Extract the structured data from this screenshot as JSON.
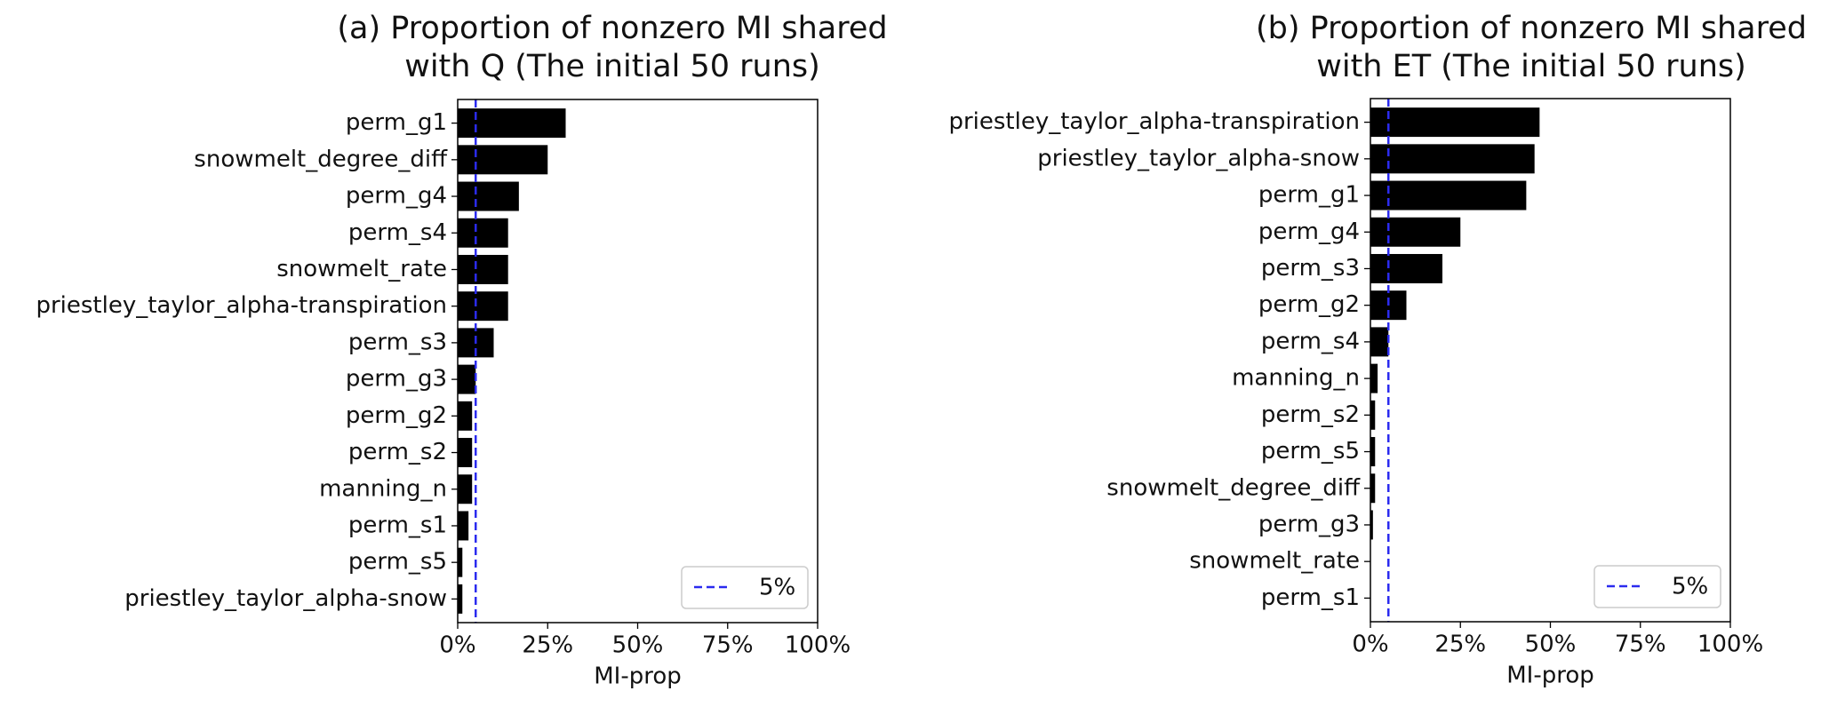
{
  "chart_data": [
    {
      "type": "barh",
      "title": [
        "(a) Proportion of nonzero MI shared",
        "with Q (The initial 50 runs)"
      ],
      "xlabel": "MI-prop",
      "categories": [
        "perm_g1",
        "snowmelt_degree_diff",
        "perm_g4",
        "perm_s4",
        "snowmelt_rate",
        "priestley_taylor_alpha-transpiration",
        "perm_s3",
        "perm_g3",
        "perm_g2",
        "perm_s2",
        "manning_n",
        "perm_s1",
        "perm_s5",
        "priestley_taylor_alpha-snow"
      ],
      "values": [
        30,
        25,
        17,
        14,
        14,
        14,
        10,
        5,
        4,
        4,
        4,
        3,
        1.3,
        1.3
      ],
      "color": "#000000",
      "xlim": [
        0,
        100
      ],
      "xticks": [
        {
          "value": 0,
          "label": "0%"
        },
        {
          "value": 25,
          "label": "25%"
        },
        {
          "value": 50,
          "label": "50%"
        },
        {
          "value": 75,
          "label": "75%"
        },
        {
          "value": 100,
          "label": "100%"
        }
      ],
      "reference_line": {
        "value": 5,
        "label": "5%",
        "color": "#2b2bef"
      },
      "legend": "lower right"
    },
    {
      "type": "barh",
      "title": [
        "(b) Proportion of nonzero MI shared",
        "with ET (The initial 50 runs)"
      ],
      "xlabel": "MI-prop",
      "categories": [
        "priestley_taylor_alpha-transpiration",
        "priestley_taylor_alpha-snow",
        "perm_g1",
        "perm_g4",
        "perm_s3",
        "perm_g2",
        "perm_s4",
        "manning_n",
        "perm_s2",
        "perm_s5",
        "snowmelt_degree_diff",
        "perm_g3",
        "snowmelt_rate",
        "perm_s1"
      ],
      "values": [
        47,
        45.6,
        43.3,
        25,
        20,
        10,
        5,
        2,
        1.3,
        1.3,
        1.3,
        0.7,
        0,
        0
      ],
      "color": "#000000",
      "xlim": [
        0,
        100
      ],
      "xticks": [
        {
          "value": 0,
          "label": "0%"
        },
        {
          "value": 25,
          "label": "25%"
        },
        {
          "value": 50,
          "label": "50%"
        },
        {
          "value": 75,
          "label": "75%"
        },
        {
          "value": 100,
          "label": "100%"
        }
      ],
      "reference_line": {
        "value": 5,
        "label": "5%",
        "color": "#2b2bef"
      },
      "legend": "lower right"
    }
  ]
}
